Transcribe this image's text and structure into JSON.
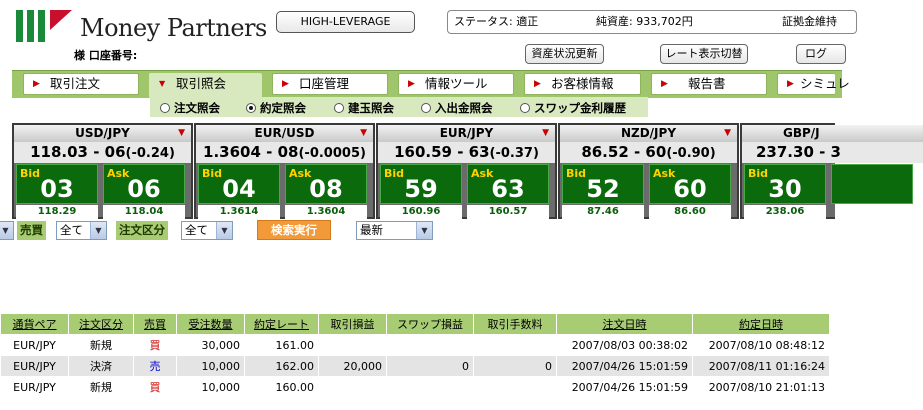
{
  "header": {
    "brand": "Money Partners",
    "account_label": "様 口座番号:",
    "mode_button": "HIGH-LEVERAGE",
    "status_label": "ステータス: 適正",
    "net_assets": "純資産: 933,702円",
    "margin_label": "証拠金維持",
    "asset_button": "資産状況更新",
    "rate_display_button": "レート表示切替",
    "logout_button": "ログ"
  },
  "menu": [
    {
      "label": "取引注文"
    },
    {
      "label": "取引照会"
    },
    {
      "label": "口座管理"
    },
    {
      "label": "情報ツール"
    },
    {
      "label": "お客様情報"
    },
    {
      "label": "報告書"
    },
    {
      "label": "シミュレ"
    }
  ],
  "submenu": [
    {
      "label": "注文照会",
      "checked": false
    },
    {
      "label": "約定照会",
      "checked": true
    },
    {
      "label": "建玉照会",
      "checked": false
    },
    {
      "label": "入出金照会",
      "checked": false
    },
    {
      "label": "スワップ金利履歴",
      "checked": false
    }
  ],
  "rates": [
    {
      "pair": "USD/JPY",
      "quote": "118.03 - 06",
      "change": "(-0.24)",
      "bid_big": "03",
      "ask_big": "06",
      "bid_low": "118.29",
      "ask_low": "118.04"
    },
    {
      "pair": "EUR/USD",
      "quote": "1.3604 - 08",
      "change": "(-0.0005)",
      "bid_big": "04",
      "ask_big": "08",
      "bid_low": "1.3614",
      "ask_low": "1.3604"
    },
    {
      "pair": "EUR/JPY",
      "quote": "160.59 - 63",
      "change": "(-0.37)",
      "bid_big": "59",
      "ask_big": "63",
      "bid_low": "160.96",
      "ask_low": "160.57"
    },
    {
      "pair": "NZD/JPY",
      "quote": "86.52 - 60",
      "change": "(-0.90)",
      "bid_big": "52",
      "ask_big": "60",
      "bid_low": "87.46",
      "ask_low": "86.60"
    },
    {
      "pair": "GBP/J",
      "quote": "237.30 - 3",
      "change": "",
      "bid_big": "30",
      "ask_big": "",
      "bid_low": "238.06",
      "ask_low": ""
    }
  ],
  "rate_tags": {
    "bid": "Bid",
    "ask": "Ask"
  },
  "filters": {
    "side_label": "売買",
    "side_value": "全て",
    "order_type_label": "注文区分",
    "order_type_value": "全て",
    "search_button": "検索実行",
    "sort_value": "最新"
  },
  "table": {
    "headers": [
      "通貨ペア",
      "注文区分",
      "売買",
      "受注数量",
      "約定レート",
      "取引損益",
      "スワップ損益",
      "取引手数料",
      "注文日時",
      "約定日時"
    ],
    "rows": [
      {
        "pair": "EUR/JPY",
        "type": "新規",
        "side": "買",
        "qty": "30,000",
        "rate": "161.00",
        "pl": "",
        "swap": "",
        "fee": "",
        "ordered": "2007/08/03 00:38:02",
        "executed": "2007/08/10 08:48:12"
      },
      {
        "pair": "EUR/JPY",
        "type": "決済",
        "side": "売",
        "qty": "10,000",
        "rate": "162.00",
        "pl": "20,000",
        "swap": "0",
        "fee": "0",
        "ordered": "2007/04/26 15:01:59",
        "executed": "2007/08/11 01:16:24"
      },
      {
        "pair": "EUR/JPY",
        "type": "新規",
        "side": "買",
        "qty": "10,000",
        "rate": "160.00",
        "pl": "",
        "swap": "",
        "fee": "",
        "ordered": "2007/04/26 15:01:59",
        "executed": "2007/08/10 21:01:13"
      }
    ]
  },
  "colors": {
    "menu_green": "#9fc66a",
    "panel_green": "#0b6a0b",
    "bid_ask_tag": "#ffd200",
    "buy": "#cc0000",
    "sell": "#0000cc",
    "search_orange": "#f29a3a"
  }
}
